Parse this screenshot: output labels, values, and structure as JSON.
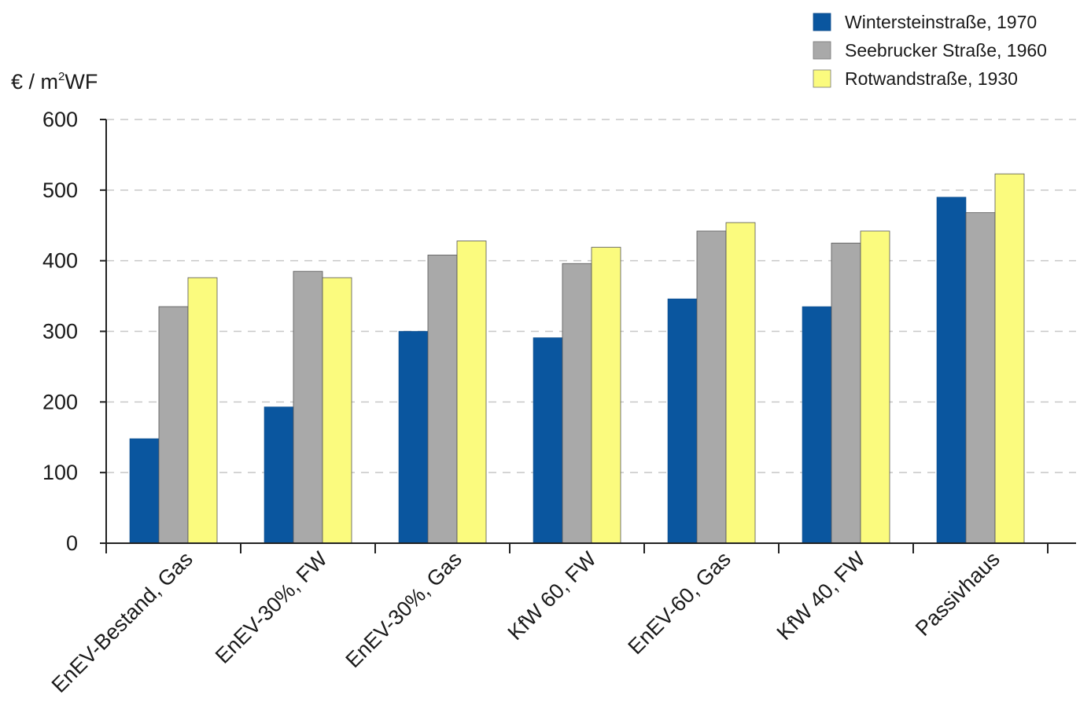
{
  "chart_data": {
    "type": "bar",
    "title": "",
    "xlabel": "",
    "ylabel": "€ / m²WF",
    "ylabel_main": "€ / m",
    "ylabel_sup": "2",
    "ylabel_tail": "WF",
    "ylim": [
      0,
      600
    ],
    "yticks": [
      0,
      100,
      200,
      300,
      400,
      500,
      600
    ],
    "ytick_labels": [
      "0",
      "100",
      "200",
      "300",
      "400",
      "500",
      "600"
    ],
    "grid": true,
    "legend_position": "top-right",
    "categories": [
      "EnEV-Bestand, Gas",
      "EnEV-30%, FW",
      "EnEV-30%, Gas",
      "KfW 60, FW",
      "EnEV-60, Gas",
      "KfW 40, FW",
      "Passivhaus"
    ],
    "series": [
      {
        "name": "Wintersteinstraße, 1970",
        "color": "#0a569f",
        "values": [
          148,
          193,
          300,
          291,
          346,
          335,
          490
        ]
      },
      {
        "name": "Seebrucker Straße, 1960",
        "color": "#a9a9a9",
        "values": [
          335,
          385,
          408,
          396,
          442,
          425,
          468
        ]
      },
      {
        "name": "Rotwandstraße, 1930",
        "color": "#fbfb7e",
        "values": [
          376,
          376,
          428,
          419,
          454,
          442,
          523
        ]
      }
    ]
  }
}
